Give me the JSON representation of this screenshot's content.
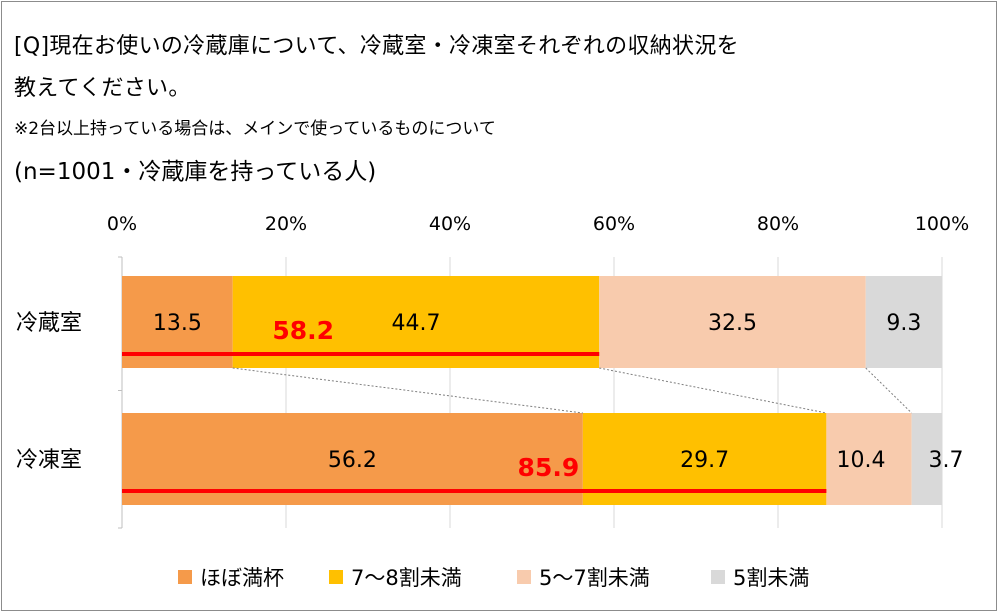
{
  "question": {
    "line1": "[Q]現在お使いの冷蔵庫について、冷蔵室・冷凍室それぞれの収納状況を",
    "line2": "教えてください。",
    "note": "※2台以上持っている場合は、メインで使っているものについて",
    "sample": "(n=1001・冷蔵庫を持っている人)"
  },
  "chart_data": {
    "type": "bar",
    "orientation": "horizontal",
    "stacked": "percent",
    "categories": [
      "冷蔵室",
      "冷凍室"
    ],
    "series": [
      {
        "name": "ほぼ満杯",
        "color": "#f59a4a",
        "values": [
          13.5,
          56.2
        ]
      },
      {
        "name": "7～8割未満",
        "color": "#ffc000",
        "values": [
          44.7,
          29.7
        ]
      },
      {
        "name": "5～7割未満",
        "color": "#f8cbad",
        "values": [
          32.5,
          10.4
        ]
      },
      {
        "name": "5割未満",
        "color": "#d9d9d9",
        "values": [
          9.3,
          3.7
        ]
      }
    ],
    "cumulative_labels": [
      "58.2",
      "85.9"
    ],
    "cumulative_color": "#ff0000",
    "xlim": [
      0,
      100
    ],
    "xticks": [
      "0%",
      "20%",
      "40%",
      "60%",
      "80%",
      "100%"
    ],
    "xaxis_position": "top",
    "grid": true,
    "legend_position": "bottom"
  }
}
